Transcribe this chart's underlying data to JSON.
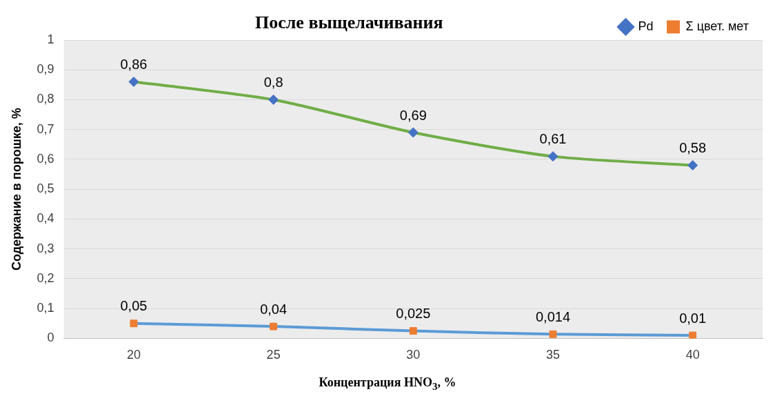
{
  "chart_data": {
    "type": "line",
    "title": "После выщелачивания",
    "xlabel": "Концентрация HNO$_{3}$, %",
    "ylabel": "Содержание в порошке, %",
    "categories": [
      "20",
      "25",
      "30",
      "35",
      "40"
    ],
    "series": [
      {
        "name": "Pd",
        "color": "#70ad47",
        "marker": "diamond",
        "values": [
          0.86,
          0.8,
          0.69,
          0.61,
          0.58
        ],
        "value_labels": [
          "0,86",
          "0,8",
          "0,69",
          "0,61",
          "0,58"
        ]
      },
      {
        "name": "Σ цвет. мет",
        "color": "#5b9bd5",
        "marker": "square",
        "values": [
          0.05,
          0.04,
          0.025,
          0.014,
          0.01
        ],
        "value_labels": [
          "0,05",
          "0,04",
          "0,025",
          "0,014",
          "0,01"
        ]
      }
    ],
    "ylim": [
      0,
      1
    ],
    "yticks": [
      {
        "value": 0,
        "label": "0"
      },
      {
        "value": 0.1,
        "label": "0,1"
      },
      {
        "value": 0.2,
        "label": "0,2"
      },
      {
        "value": 0.3,
        "label": "0,3"
      },
      {
        "value": 0.4,
        "label": "0,4"
      },
      {
        "value": 0.5,
        "label": "0,5"
      },
      {
        "value": 0.6,
        "label": "0,6"
      },
      {
        "value": 0.7,
        "label": "0,7"
      },
      {
        "value": 0.8,
        "label": "0,8"
      },
      {
        "value": 0.9,
        "label": "0,9"
      },
      {
        "value": 1,
        "label": "1"
      }
    ],
    "grid": "y",
    "legend": "top right"
  }
}
